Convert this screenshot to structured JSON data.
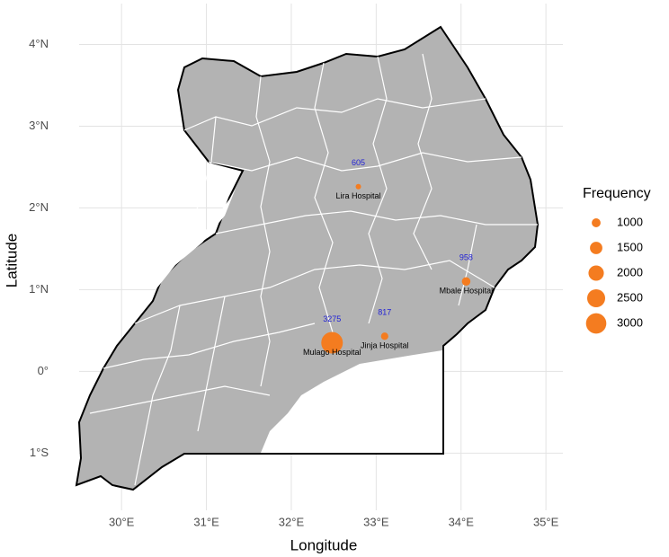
{
  "chart_data": {
    "type": "bubble",
    "x_label": "Longitude",
    "y_label": "Latitude",
    "categories": [
      "Lira Hospital",
      "Mbale Hospital",
      "Jinja Hospital",
      "Mulago Hospital"
    ],
    "x": [
      32.79,
      34.06,
      33.1,
      32.48
    ],
    "y": [
      2.26,
      1.1,
      0.43,
      0.35
    ],
    "values": [
      605,
      958,
      817,
      3275
    ],
    "color": "#f47c20",
    "value_label_color": "#1f1fd6",
    "xlim": [
      29.5,
      35.2
    ],
    "ylim": [
      -1.7,
      4.5
    ],
    "xticks": [
      {
        "value": 30,
        "label": "30°E"
      },
      {
        "value": 31,
        "label": "31°E"
      },
      {
        "value": 32,
        "label": "32°E"
      },
      {
        "value": 33,
        "label": "33°E"
      },
      {
        "value": 34,
        "label": "34°E"
      },
      {
        "value": 35,
        "label": "35°E"
      }
    ],
    "yticks": [
      {
        "value": -1,
        "label": "1°S"
      },
      {
        "value": 0,
        "label": "0°"
      },
      {
        "value": 1,
        "label": "1°N"
      },
      {
        "value": 2,
        "label": "2°N"
      },
      {
        "value": 3,
        "label": "3°N"
      },
      {
        "value": 4,
        "label": "4°N"
      }
    ],
    "grid": true,
    "size_legend": {
      "title": "Frequency",
      "breaks": [
        1000,
        1500,
        2000,
        2500,
        3000
      ]
    }
  }
}
